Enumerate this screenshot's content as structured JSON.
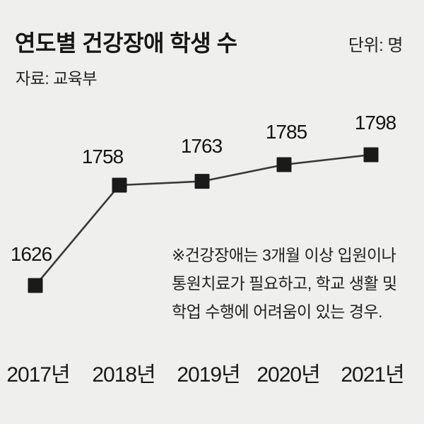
{
  "header": {
    "title": "연도별 건강장애 학생 수",
    "unit_label": "단위: 명",
    "source": "자료: 교육부"
  },
  "footnote": {
    "lines": [
      "※건강장애는 3개월 이상 입원이나",
      "통원치료가 필요하고, 학교 생활 및",
      "학업 수행에 어려움이 있는 경우."
    ]
  },
  "chart_data": {
    "type": "line",
    "title": "연도별 건강장애 학생 수",
    "unit": "명",
    "source": "교육부",
    "categories": [
      "2017년",
      "2018년",
      "2019년",
      "2020년",
      "2021년"
    ],
    "values": [
      1626,
      1758,
      1763,
      1785,
      1798
    ],
    "xlabel": "",
    "ylabel": "명",
    "ylim": [
      1600,
      1820
    ],
    "grid": false,
    "legend": "none",
    "marker": "filled-square",
    "data_labels": true,
    "colors": {
      "background": "#efefed",
      "text": "#191919",
      "line": "#383838",
      "marker": "#1a1a1a"
    }
  }
}
